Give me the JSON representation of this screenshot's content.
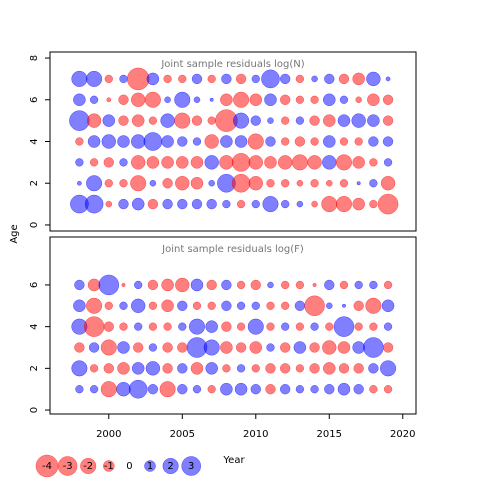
{
  "chart_data": [
    {
      "type": "bubble",
      "title": "Joint sample residuals log(N)",
      "ylabel": "Age",
      "x": [
        1998,
        1999,
        2000,
        2001,
        2002,
        2003,
        2004,
        2005,
        2006,
        2007,
        2008,
        2009,
        2010,
        2011,
        2012,
        2013,
        2014,
        2015,
        2016,
        2017,
        2018,
        2019
      ],
      "ages": [
        1,
        2,
        3,
        4,
        5,
        6,
        7
      ],
      "residuals": [
        [
          2.7,
          2.7,
          -0.3,
          0.8,
          1.2,
          -0.8,
          0.8,
          0.8,
          0.8,
          0.8,
          0.5,
          -0.5,
          0.5,
          2,
          0.5,
          0.3,
          -0.3,
          -2,
          -2,
          -1.2,
          -0.5,
          -3.3
        ],
        [
          0.15,
          2,
          -0.5,
          -0.5,
          -2,
          0.3,
          -0.8,
          -1.6,
          -1.2,
          0.3,
          2.7,
          -2.7,
          -1.6,
          -0.5,
          -0.5,
          -0.3,
          -0.5,
          -0.3,
          -0.5,
          0.1,
          0.5,
          -1.6
        ],
        [
          0.5,
          -0.5,
          -0.8,
          0.5,
          -1.6,
          -1.2,
          -1.2,
          -1.2,
          -1.2,
          1.6,
          -1.6,
          -2.7,
          -1.6,
          -1.2,
          -1.6,
          -2,
          -1.6,
          1.6,
          -2,
          -1.2,
          -0.5,
          0.5
        ],
        [
          -0.5,
          1.2,
          1.6,
          1.2,
          1.6,
          2.7,
          1.2,
          0.8,
          0.5,
          -1.6,
          1.2,
          1.2,
          -2,
          0.8,
          -0.5,
          -0.8,
          -0.5,
          1.2,
          -0.5,
          -0.5,
          0.8,
          0.8
        ],
        [
          3.3,
          -1.6,
          1.2,
          -0.8,
          -1.2,
          -0.5,
          1.6,
          -2,
          -0.8,
          -0.5,
          -4,
          2,
          0.8,
          0.3,
          -0.5,
          0.5,
          -0.8,
          -1.2,
          1.2,
          1.6,
          1.2,
          -0.8
        ],
        [
          1.2,
          0.5,
          -0.15,
          -0.8,
          -1.6,
          -2,
          0.3,
          2,
          0.3,
          0.1,
          -1.2,
          -2,
          -1.2,
          1.2,
          -0.8,
          -0.5,
          -0.5,
          1.2,
          0.5,
          -0.3,
          -1.2,
          -0.8
        ],
        [
          2,
          2,
          -0.5,
          0.5,
          -4,
          1.2,
          -0.5,
          -0.5,
          0.8,
          -0.5,
          0.8,
          -0.8,
          0.5,
          2.7,
          0.8,
          -0.5,
          0.3,
          0.8,
          -0.8,
          -1.2,
          1.6,
          0.15
        ]
      ],
      "xlim": [
        1996,
        2020.9
      ],
      "ylim": [
        -0.29,
        8.29
      ],
      "yticks": [
        0,
        2,
        4,
        6,
        8
      ],
      "negative_color": "#ff0000",
      "positive_color": "#0000ff"
    },
    {
      "type": "bubble",
      "title": "Joint sample residuals log(F)",
      "xlabel": "Year",
      "x": [
        1998,
        1999,
        2000,
        2001,
        2002,
        2003,
        2004,
        2005,
        2006,
        2007,
        2008,
        2009,
        2010,
        2011,
        2012,
        2013,
        2014,
        2015,
        2016,
        2017,
        2018,
        2019
      ],
      "ages": [
        1,
        2,
        3,
        4,
        5,
        6
      ],
      "residuals": [
        [
          0.5,
          0.5,
          -2,
          1.6,
          2.7,
          0.8,
          -2,
          0.8,
          0.5,
          -0.5,
          1.2,
          1.2,
          0.8,
          -0.8,
          0.8,
          0.5,
          0.5,
          0.8,
          1.2,
          0.8,
          -0.5,
          -0.5
        ],
        [
          2,
          -0.5,
          -0.8,
          -1.2,
          1.2,
          1.6,
          -0.8,
          0.8,
          -1.2,
          1.2,
          -0.5,
          0.5,
          -0.5,
          -0.8,
          -0.8,
          -0.5,
          -0.8,
          -1.2,
          -0.8,
          -0.8,
          0.8,
          2
        ],
        [
          -0.8,
          0.8,
          -2,
          1.2,
          -0.8,
          0.5,
          -0.8,
          -0.8,
          3.3,
          2,
          -1.2,
          -0.8,
          -1.2,
          0.5,
          -0.8,
          1.2,
          -0.8,
          -1.6,
          -1.2,
          1.2,
          3.3,
          -0.8
        ],
        [
          2,
          -3.3,
          -0.8,
          -0.5,
          0.5,
          -0.5,
          -0.5,
          0.5,
          2,
          1.2,
          -0.8,
          -0.5,
          2,
          -0.5,
          0.5,
          -0.5,
          0.5,
          -0.5,
          3.3,
          -0.5,
          -0.5,
          0.5
        ],
        [
          1.2,
          -2,
          -0.5,
          0.5,
          1.6,
          -0.5,
          -1.2,
          0.8,
          -0.5,
          -0.5,
          0.8,
          0.5,
          0.5,
          -0.5,
          -0.5,
          0.8,
          -3.3,
          0.3,
          0.1,
          -0.8,
          -2,
          1.2
        ],
        [
          0.8,
          -1.2,
          3.3,
          -0.1,
          0.5,
          -0.8,
          -1.2,
          -1.6,
          1.2,
          -0.8,
          0.8,
          -0.5,
          -0.8,
          0.3,
          -0.5,
          -0.5,
          -0.1,
          0.8,
          -0.5,
          0.5,
          0.5,
          -0.5
        ]
      ],
      "xlim": [
        1996,
        2020.9
      ],
      "ylim": [
        -0.19,
        8.3
      ],
      "yticks": [
        0,
        2,
        4,
        6
      ],
      "xticks": [
        2000,
        2005,
        2010,
        2015,
        2020
      ],
      "negative_color": "#ff0000",
      "positive_color": "#0000ff"
    }
  ],
  "legend": {
    "values": [
      -4,
      -3,
      -2,
      -1,
      0,
      1,
      2,
      3
    ]
  }
}
